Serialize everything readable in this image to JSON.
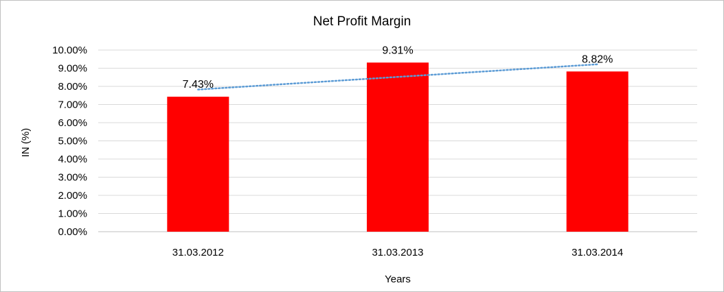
{
  "chart_data": {
    "type": "bar",
    "title": "Net Profit Margin",
    "xlabel": "Years",
    "ylabel": "IN (%)",
    "categories": [
      "31.03.2012",
      "31.03.2013",
      "31.03.2014"
    ],
    "values": [
      7.43,
      9.31,
      8.82
    ],
    "data_labels": [
      "7.43%",
      "9.31%",
      "8.82%"
    ],
    "ylim": [
      0,
      10
    ],
    "y_ticks": [
      "0.00%",
      "1.00%",
      "2.00%",
      "3.00%",
      "4.00%",
      "5.00%",
      "6.00%",
      "7.00%",
      "8.00%",
      "9.00%",
      "10.00%"
    ],
    "grid": true,
    "legend": "none",
    "trendline": "linear",
    "colors": {
      "bar": "#ff0000",
      "trendline": "#5b9bd5",
      "grid": "#d9d9d9",
      "border": "#bfbfbf"
    }
  }
}
